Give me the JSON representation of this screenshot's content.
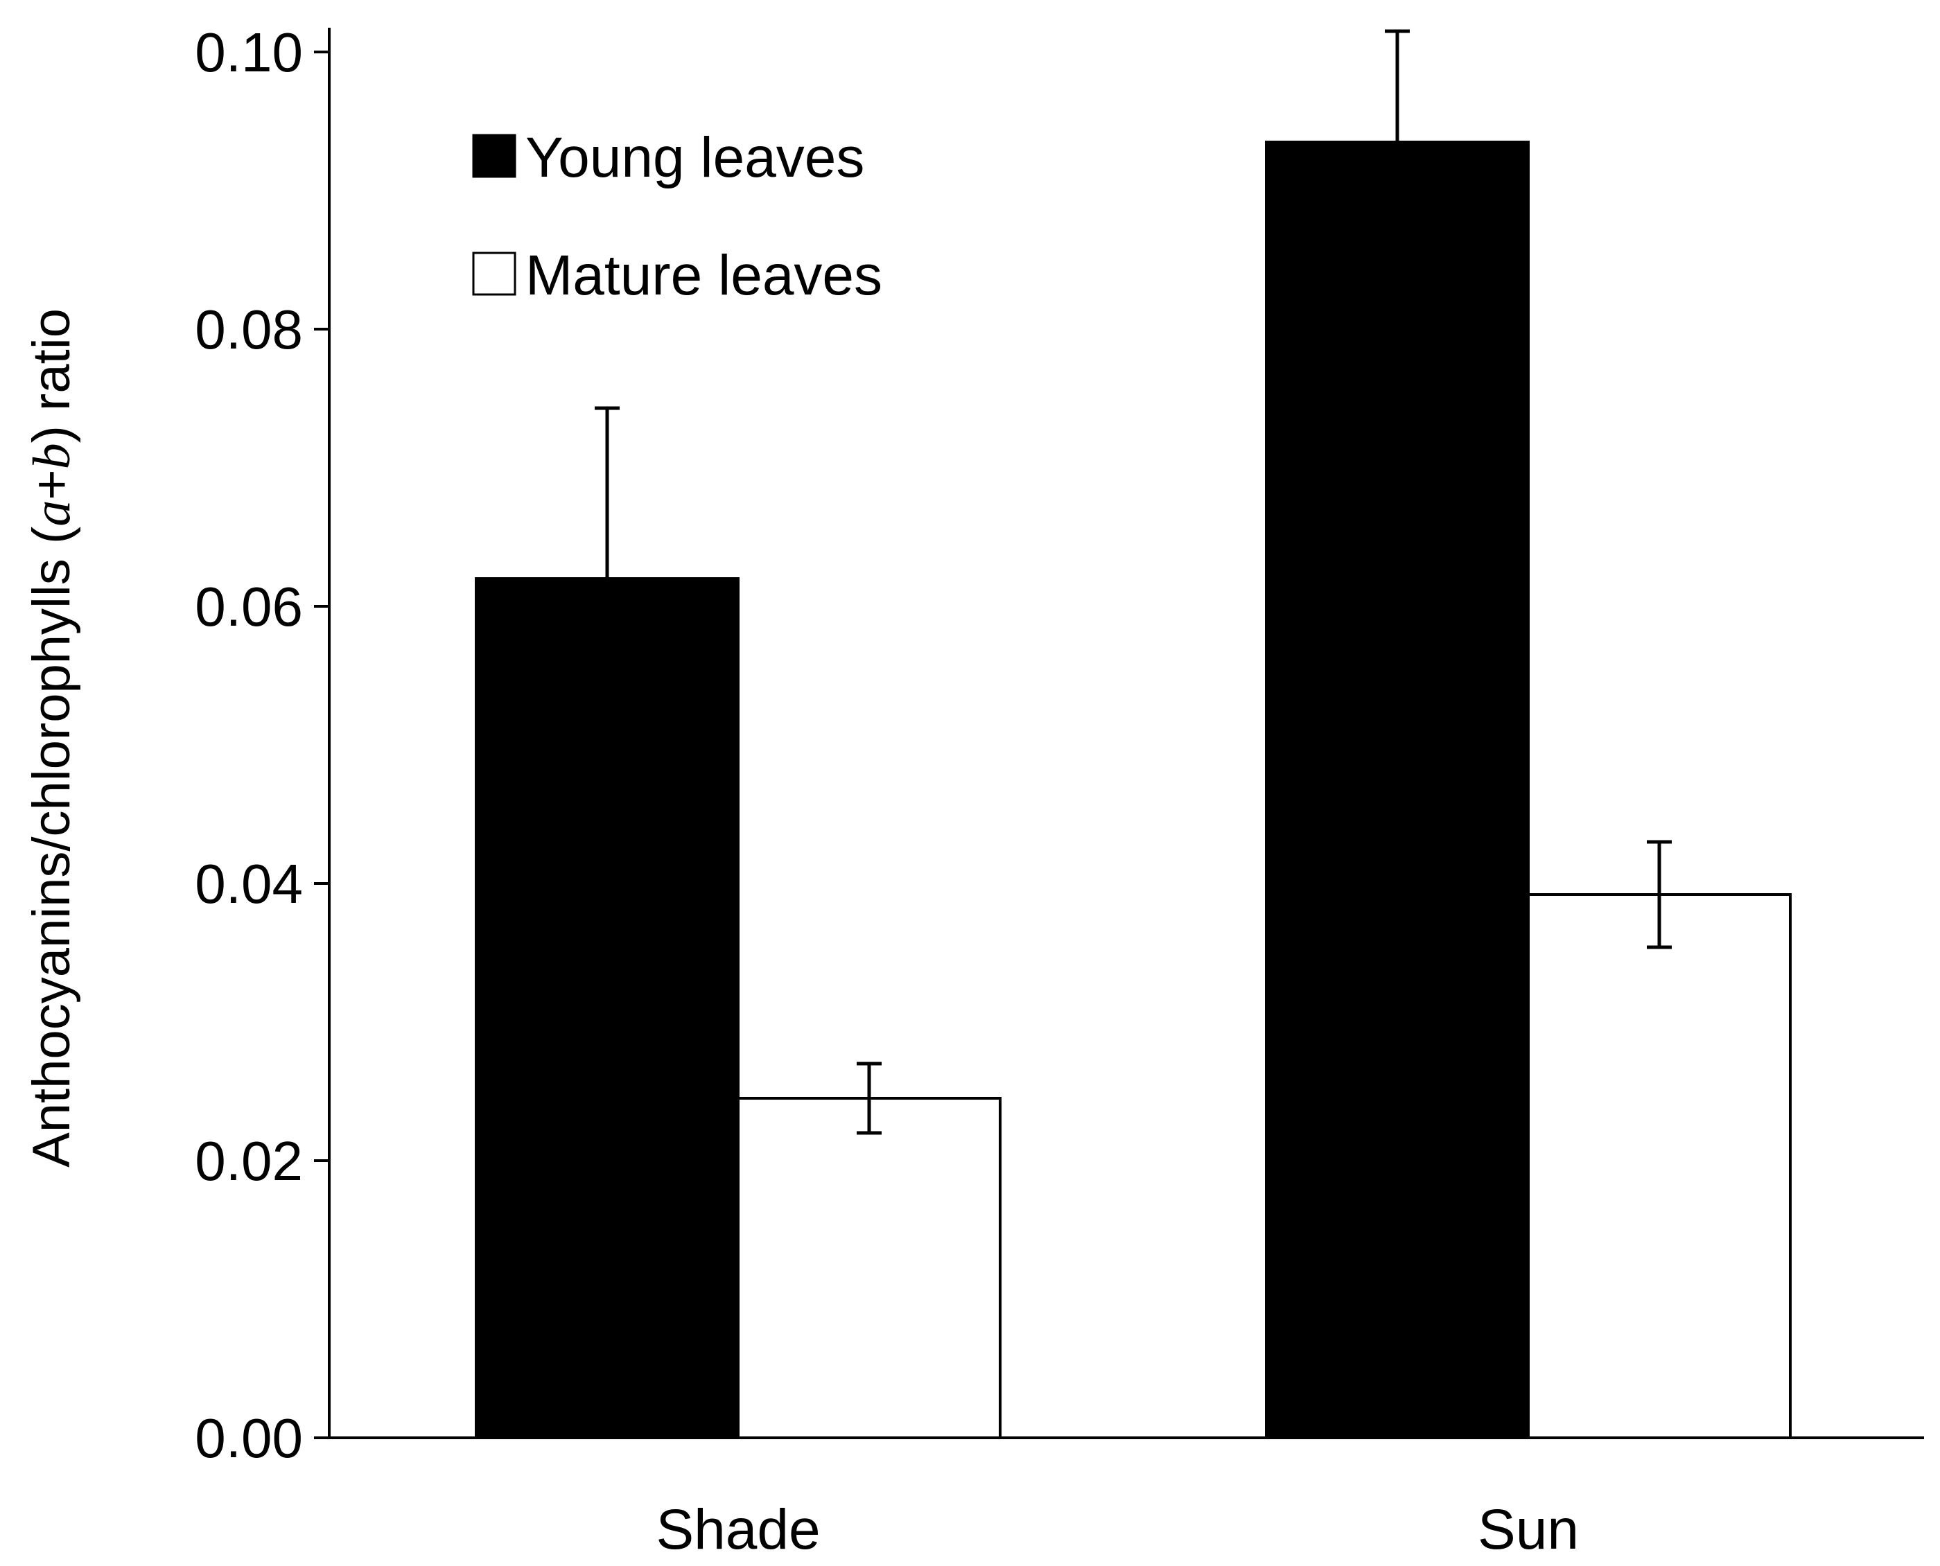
{
  "chart_data": {
    "type": "bar",
    "categories": [
      "Shade",
      "Sun"
    ],
    "series": [
      {
        "name": "Young leaves",
        "values": [
          0.062,
          0.0935
        ],
        "errors": [
          0.0123,
          0.008
        ],
        "fill": "#000000",
        "error_style": "upper"
      },
      {
        "name": "Mature leaves",
        "values": [
          0.0245,
          0.0392
        ],
        "errors": [
          0.0025,
          0.0038
        ],
        "fill": "#ffffff",
        "error_style": "both"
      }
    ],
    "yticks": [
      "0.00",
      "0.02",
      "0.04",
      "0.06",
      "0.08",
      "0.10"
    ],
    "ylim": [
      0,
      0.1
    ],
    "ylabel": {
      "pre": "Anthocyanins/chlorophylls (",
      "a": "a",
      "plus": "+",
      "b": "b",
      "post": ") ratio"
    },
    "xlabel": "",
    "grid": false,
    "legend_position": "top-left",
    "colors": {
      "axis": "#000000",
      "background": "#ffffff"
    }
  }
}
